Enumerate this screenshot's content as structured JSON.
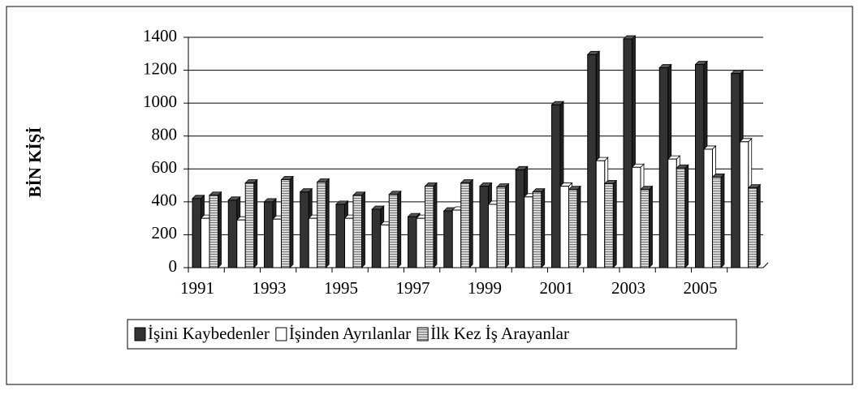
{
  "chart_data": {
    "type": "bar",
    "y_label": "BİN KİŞİ",
    "categories": [
      "1991",
      null,
      "1993",
      null,
      "1995",
      null,
      "1997",
      null,
      "1999",
      null,
      "2001",
      null,
      "2003",
      null,
      "2005",
      null
    ],
    "series": [
      {
        "name": "İşini Kaybedenler",
        "color": "#333333",
        "values": [
          420,
          410,
          400,
          460,
          385,
          355,
          310,
          345,
          495,
          595,
          990,
          1295,
          1390,
          1215,
          1235,
          1180
        ]
      },
      {
        "name": "İşinden Ayrılanlar",
        "color": "#ffffff",
        "values": [
          300,
          290,
          295,
          300,
          300,
          260,
          300,
          350,
          385,
          430,
          495,
          650,
          610,
          660,
          720,
          765
        ]
      },
      {
        "name": "İlk Kez İş Arayanlar",
        "color": "#b4b4b4",
        "values": [
          440,
          515,
          535,
          520,
          440,
          445,
          495,
          515,
          490,
          460,
          475,
          510,
          475,
          605,
          550,
          485
        ]
      }
    ],
    "ylim": [
      0,
      1400
    ],
    "yticks": [
      0,
      200,
      400,
      600,
      800,
      1000,
      1200,
      1400
    ],
    "grid": true,
    "legend": "bottom"
  }
}
